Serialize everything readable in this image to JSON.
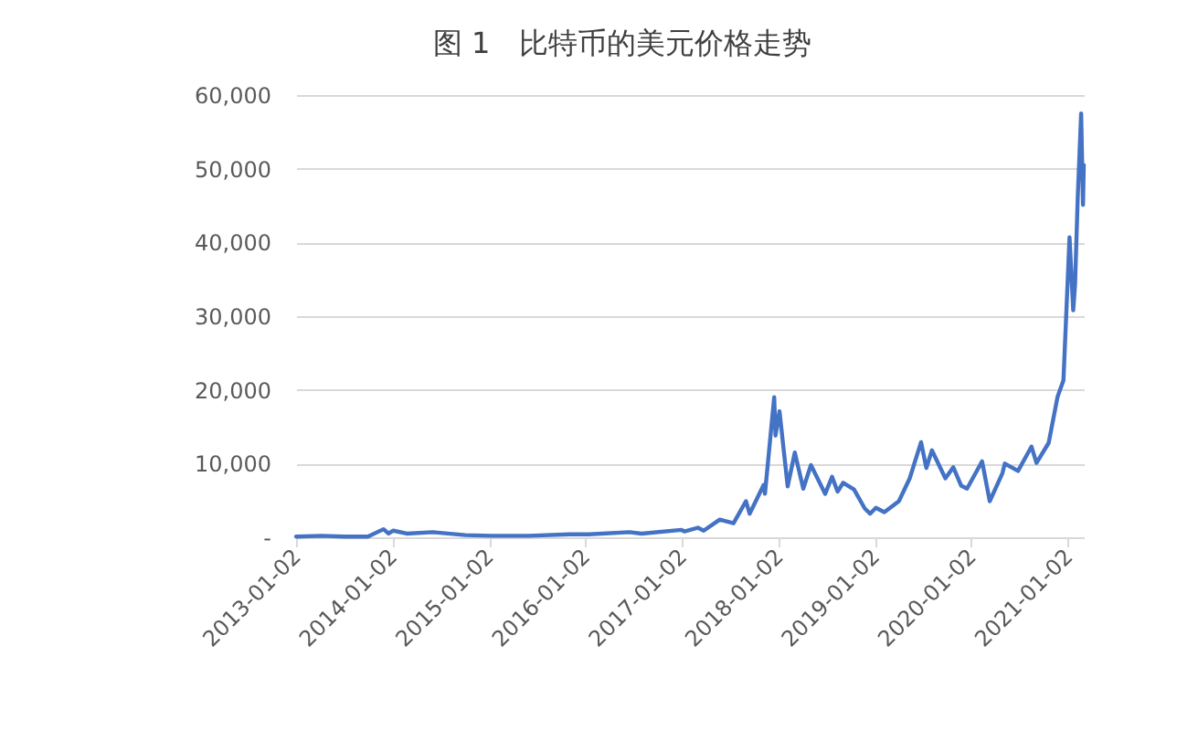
{
  "chart_data": {
    "type": "line",
    "title": "图 1　比特币的美元价格走势",
    "x": [
      "2013-01-02",
      "2013-04-09",
      "2013-07-05",
      "2013-10-01",
      "2013-11-29",
      "2013-12-18",
      "2014-01-05",
      "2014-02-25",
      "2014-06-03",
      "2014-10-05",
      "2015-01-14",
      "2015-06-01",
      "2015-11-04",
      "2016-01-15",
      "2016-06-17",
      "2016-08-02",
      "2016-12-31",
      "2017-01-11",
      "2017-03-03",
      "2017-03-25",
      "2017-05-25",
      "2017-07-16",
      "2017-09-01",
      "2017-09-15",
      "2017-11-07",
      "2017-11-12",
      "2017-12-17",
      "2017-12-22",
      "2018-01-06",
      "2018-02-06",
      "2018-03-05",
      "2018-04-06",
      "2018-05-05",
      "2018-06-28",
      "2018-07-24",
      "2018-08-14",
      "2018-09-04",
      "2018-10-15",
      "2018-11-25",
      "2018-12-15",
      "2019-01-06",
      "2019-02-07",
      "2019-04-03",
      "2019-05-14",
      "2019-06-26",
      "2019-07-16",
      "2019-08-06",
      "2019-09-26",
      "2019-10-26",
      "2019-11-25",
      "2019-12-17",
      "2020-02-12",
      "2020-03-12",
      "2020-04-29",
      "2020-05-08",
      "2020-06-27",
      "2020-08-17",
      "2020-09-05",
      "2020-10-21",
      "2020-11-24",
      "2020-12-16",
      "2021-01-08",
      "2021-01-22",
      "2021-01-29",
      "2021-02-08",
      "2021-02-21",
      "2021-02-28",
      "2021-03-03"
    ],
    "series": [
      {
        "color": "#4472c4",
        "values": [
          100,
          200,
          100,
          100,
          1100,
          500,
          900,
          500,
          700,
          300,
          200,
          200,
          400,
          400,
          700,
          500,
          1000,
          800,
          1300,
          900,
          2400,
          1900,
          4900,
          3200,
          7100,
          5900,
          19000,
          13800,
          17100,
          6900,
          11500,
          6600,
          9800,
          5900,
          8200,
          6200,
          7400,
          6500,
          3900,
          3200,
          4000,
          3400,
          4900,
          8000,
          12900,
          9400,
          11800,
          8000,
          9500,
          7000,
          6600,
          10300,
          4900,
          8700,
          10000,
          9000,
          12300,
          10100,
          12800,
          19100,
          21300,
          40700,
          30800,
          34300,
          46000,
          57500,
          45100,
          50500
        ]
      }
    ],
    "xlim": [
      "2013-01-02",
      "2021-03-03"
    ],
    "xticks": [
      "2013-01-02",
      "2014-01-02",
      "2015-01-02",
      "2016-01-02",
      "2017-01-02",
      "2018-01-02",
      "2019-01-02",
      "2020-01-02",
      "2021-01-02"
    ],
    "ylim": [
      0,
      60000
    ],
    "yticks": [
      {
        "value": 0,
        "label": "-"
      },
      {
        "value": 10000,
        "label": "10,000"
      },
      {
        "value": 20000,
        "label": "20,000"
      },
      {
        "value": 30000,
        "label": "30,000"
      },
      {
        "value": 40000,
        "label": "40,000"
      },
      {
        "value": 50000,
        "label": "50,000"
      },
      {
        "value": 60000,
        "label": "60,000"
      }
    ],
    "grid": "y"
  }
}
